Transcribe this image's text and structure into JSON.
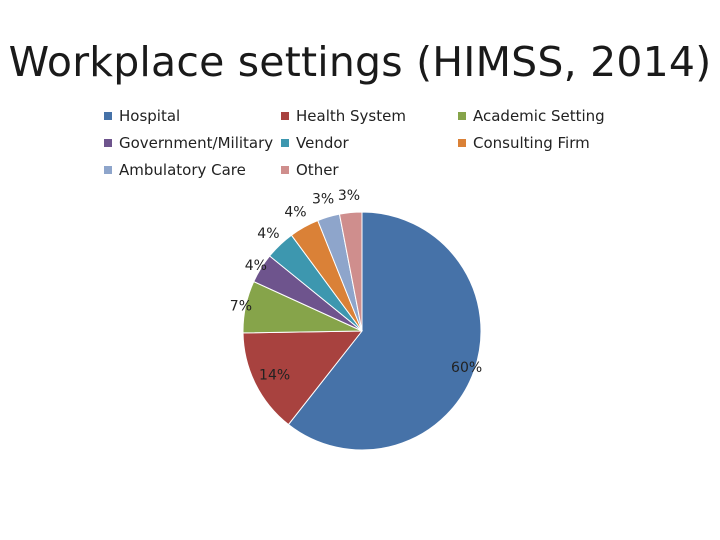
{
  "slide": {
    "title": "Workplace settings (HIMSS, 2014)"
  },
  "chart_data": {
    "type": "pie",
    "title": "Workplace settings (HIMSS, 2014)",
    "legend_position": "top",
    "categories": [
      "Hospital",
      "Health System",
      "Academic Setting",
      "Government/Military",
      "Vendor",
      "Consulting Firm",
      "Ambulatory Care",
      "Other"
    ],
    "values": [
      60,
      14,
      7,
      4,
      4,
      4,
      3,
      3
    ],
    "value_labels": [
      "60%",
      "14%",
      "7%",
      "4%",
      "4%",
      "4%",
      "3%",
      "3%"
    ],
    "colors": [
      "#4672A8",
      "#A8423F",
      "#86A44A",
      "#6E548D",
      "#3D97AF",
      "#DA8137",
      "#8EA5CB",
      "#CF8E8D"
    ],
    "start_angle_deg": 0,
    "direction": "clockwise"
  }
}
